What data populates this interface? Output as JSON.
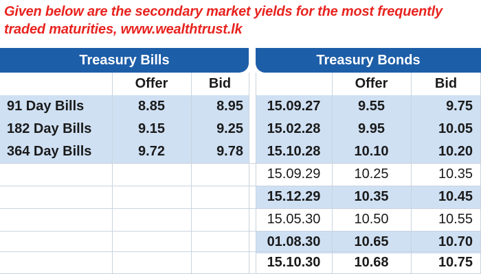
{
  "caption": "Given below are the secondary market yields for the most frequently traded maturities, www.wealthtrust.lk",
  "bills": {
    "title": "Treasury Bills",
    "headers": {
      "offer": "Offer",
      "bid": "Bid"
    },
    "rows": [
      {
        "label": "91 Day Bills",
        "offer": "8.85",
        "bid": "8.95"
      },
      {
        "label": "182 Day Bills",
        "offer": "9.15",
        "bid": "9.25"
      },
      {
        "label": "364 Day Bills",
        "offer": "9.72",
        "bid": "9.78"
      }
    ]
  },
  "bonds": {
    "title": "Treasury Bonds",
    "headers": {
      "offer": "Offer",
      "bid": "Bid"
    },
    "rows": [
      {
        "maturity": "15.09.27",
        "offer": "9.55",
        "bid": "9.75"
      },
      {
        "maturity": "15.02.28",
        "offer": "9.95",
        "bid": "10.05"
      },
      {
        "maturity": "15.10.28",
        "offer": "10.10",
        "bid": "10.20"
      },
      {
        "maturity": "15.09.29",
        "offer": "10.25",
        "bid": "10.35"
      },
      {
        "maturity": "15.12.29",
        "offer": "10.35",
        "bid": "10.45"
      },
      {
        "maturity": "15.05.30",
        "offer": "10.50",
        "bid": "10.55"
      },
      {
        "maturity": "01.08.30",
        "offer": "10.65",
        "bid": "10.70"
      },
      {
        "maturity": "15.10.30",
        "offer": "10.68",
        "bid": "10.75"
      }
    ]
  }
}
